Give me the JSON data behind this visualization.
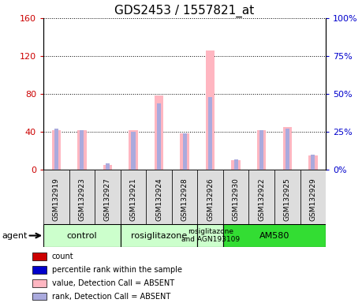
{
  "title": "GDS2453 / 1557821_at",
  "samples": [
    "GSM132919",
    "GSM132923",
    "GSM132927",
    "GSM132921",
    "GSM132924",
    "GSM132928",
    "GSM132926",
    "GSM132930",
    "GSM132922",
    "GSM132925",
    "GSM132929"
  ],
  "ylim_left": [
    0,
    160
  ],
  "ylim_right": [
    0,
    100
  ],
  "yticks_left": [
    0,
    40,
    80,
    120,
    160
  ],
  "ytick_labels_left": [
    "0",
    "40",
    "80",
    "120",
    "160"
  ],
  "yticks_right": [
    0,
    25,
    50,
    75,
    100
  ],
  "ytick_labels_right": [
    "0%",
    "25%",
    "50%",
    "75%",
    "100%"
  ],
  "pink_bars": [
    42,
    42,
    5,
    42,
    78,
    38,
    126,
    10,
    42,
    45,
    15
  ],
  "lightblue_bars_pct": [
    27,
    26,
    4,
    25,
    44,
    24,
    48,
    7,
    26,
    27,
    10
  ],
  "group_colors": [
    "#CCFFCC",
    "#CCFFCC",
    "#CCFFCC",
    "#33DD33"
  ],
  "group_labels": [
    "control",
    "rosiglitazone",
    "rosiglitazone\nand AGN193109",
    "AM580"
  ],
  "group_ranges": [
    [
      0,
      3
    ],
    [
      3,
      6
    ],
    [
      6,
      7
    ],
    [
      7,
      11
    ]
  ],
  "legend_colors": [
    "#CC0000",
    "#0000CC",
    "#FFB6C1",
    "#AAAADD"
  ],
  "legend_labels": [
    "count",
    "percentile rank within the sample",
    "value, Detection Call = ABSENT",
    "rank, Detection Call = ABSENT"
  ],
  "agent_label": "agent",
  "tick_color_left": "#CC0000",
  "tick_color_right": "#0000CC",
  "title_fontsize": 11,
  "sample_box_color": "#DDDDDD",
  "plot_bg": "#FFFFFF"
}
